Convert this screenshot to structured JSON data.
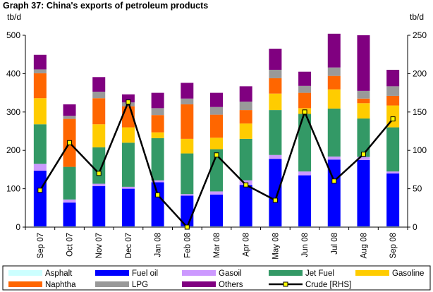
{
  "chart_data": {
    "type": "bar",
    "title": "Graph 37: China's exports of petroleum products",
    "ylabel_left": "tb/d",
    "ylabel_right": "tb/d",
    "ylim_left": [
      0,
      500
    ],
    "yticks_left": [
      "0",
      "100",
      "200",
      "300",
      "400",
      "500"
    ],
    "ylim_right": [
      0,
      250
    ],
    "yticks_right": [
      "0",
      "50",
      "100",
      "150",
      "200",
      "250"
    ],
    "grid": false,
    "legend_position": "bottom",
    "categories": [
      "Sep 07",
      "Oct 07",
      "Nov 07",
      "Dec 07",
      "Jan 08",
      "Feb 08",
      "Mar 08",
      "Apr 08",
      "May 08",
      "Jun 08",
      "Jul 08",
      "Aug 08",
      "Sep 08"
    ],
    "series": [
      {
        "name": "Asphalt",
        "type": "stacked-bar",
        "axis": "left",
        "color": "#ccffff",
        "values": [
          2,
          2,
          2,
          2,
          2,
          2,
          2,
          2,
          2,
          2,
          2,
          2,
          2
        ]
      },
      {
        "name": "Fuel oil",
        "type": "stacked-bar",
        "axis": "left",
        "color": "#0000ff",
        "values": [
          145,
          62,
          105,
          98,
          115,
          80,
          83,
          108,
          176,
          133,
          174,
          173,
          138
        ]
      },
      {
        "name": "Gasoil",
        "type": "stacked-bar",
        "axis": "left",
        "color": "#cc99ff",
        "values": [
          18,
          8,
          6,
          5,
          5,
          4,
          8,
          12,
          10,
          10,
          8,
          8,
          5
        ]
      },
      {
        "name": "Jet Fuel",
        "type": "stacked-bar",
        "axis": "left",
        "color": "#339966",
        "values": [
          103,
          85,
          95,
          115,
          110,
          106,
          110,
          108,
          117,
          150,
          125,
          100,
          115
        ]
      },
      {
        "name": "Gasoline",
        "type": "stacked-bar",
        "axis": "left",
        "color": "#ffcc00",
        "values": [
          68,
          0,
          60,
          40,
          15,
          38,
          30,
          40,
          43,
          15,
          50,
          40,
          57
        ]
      },
      {
        "name": "Naphtha",
        "type": "stacked-bar",
        "axis": "left",
        "color": "#ff6600",
        "values": [
          65,
          125,
          68,
          55,
          45,
          90,
          60,
          35,
          40,
          40,
          35,
          12,
          25
        ]
      },
      {
        "name": "LPG",
        "type": "stacked-bar",
        "axis": "left",
        "color": "#999999",
        "values": [
          10,
          8,
          17,
          10,
          18,
          15,
          20,
          22,
          22,
          18,
          22,
          20,
          25
        ]
      },
      {
        "name": "Others",
        "type": "stacked-bar",
        "axis": "left",
        "color": "#800080",
        "values": [
          38,
          30,
          38,
          21,
          40,
          41,
          37,
          40,
          55,
          37,
          88,
          145,
          43
        ]
      },
      {
        "name": "Crude [RHS]",
        "type": "line",
        "axis": "right",
        "color": "#000000",
        "marker_color": "#ffff00",
        "values": [
          48,
          110,
          70,
          163,
          42,
          0,
          94,
          55,
          35,
          150,
          60,
          95,
          141
        ]
      }
    ]
  }
}
